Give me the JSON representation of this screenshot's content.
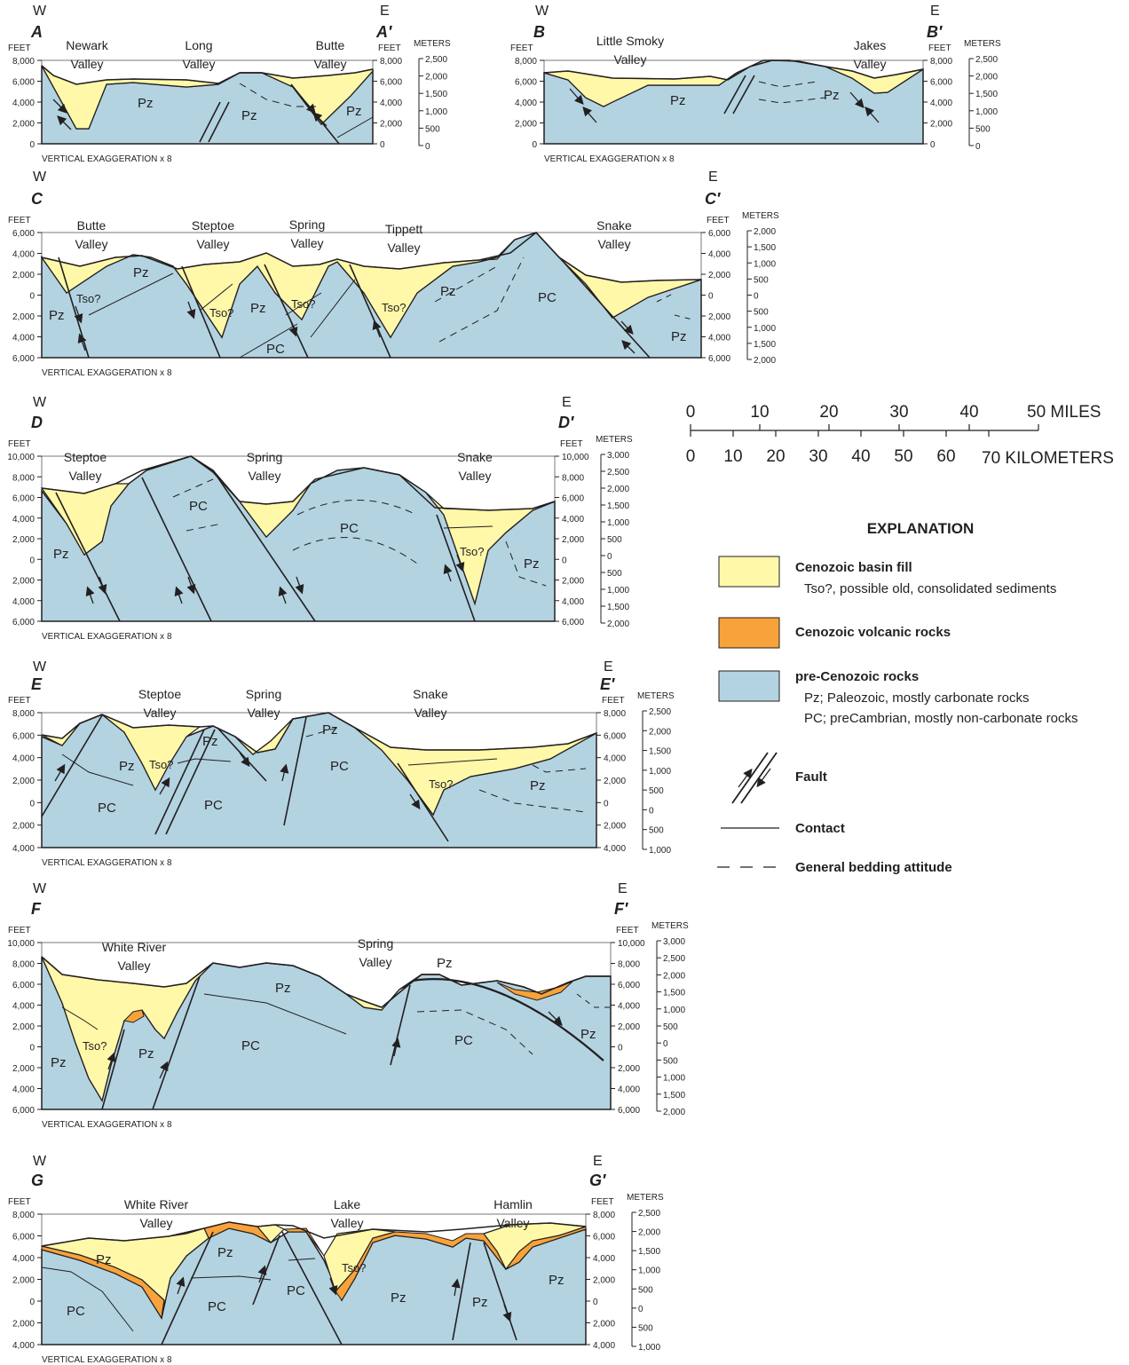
{
  "sections": [
    {
      "id": "A",
      "start": "A",
      "end": "A′",
      "west": "W",
      "east": "E",
      "feet_ticks": [
        "8,000",
        "6,000",
        "4,000",
        "2,000",
        "0"
      ],
      "meter_ticks": [
        "2,500",
        "2,000",
        "1,500",
        "1,000",
        "500",
        "0"
      ],
      "valleys": [
        "Newark\nValley",
        "Long\nValley",
        "Butte\nValley"
      ],
      "rocks": [
        "Pz",
        "Pz",
        "Pz"
      ],
      "tso": []
    },
    {
      "id": "B",
      "start": "B",
      "end": "B′",
      "west": "W",
      "east": "E",
      "feet_ticks": [
        "8,000",
        "6,000",
        "4,000",
        "2,000",
        "0"
      ],
      "meter_ticks": [
        "2,500",
        "2,000",
        "1,500",
        "1,000",
        "500",
        "0"
      ],
      "valleys": [
        "Little Smoky\nValley",
        "Jakes\nValley"
      ],
      "rocks": [
        "Pz",
        "Pz"
      ],
      "tso": []
    },
    {
      "id": "C",
      "start": "C",
      "end": "C′",
      "west": "W",
      "east": "E",
      "feet_ticks": [
        "6,000",
        "4,000",
        "2,000",
        "0",
        "2,000",
        "4,000",
        "6,000"
      ],
      "meter_ticks": [
        "2,000",
        "1,500",
        "1,000",
        "500",
        "0",
        "500",
        "1,000",
        "1,500",
        "2,000"
      ],
      "valleys": [
        "Butte\nValley",
        "Steptoe\nValley",
        "Spring\nValley",
        "Tippett\nValley",
        "Snake\nValley"
      ],
      "rocks": [
        "Pz",
        "Pz",
        "Pz",
        "PC",
        "PC",
        "Pz",
        "Pz"
      ],
      "tso": [
        "Tso?",
        "Tso?",
        "Tso?",
        "Tso?"
      ]
    },
    {
      "id": "D",
      "start": "D",
      "end": "D′",
      "west": "W",
      "east": "E",
      "feet_ticks": [
        "10,000",
        "8,000",
        "6,000",
        "4,000",
        "2,000",
        "0",
        "2,000",
        "4,000",
        "6,000"
      ],
      "meter_ticks": [
        "3,000",
        "2,500",
        "2,000",
        "1,500",
        "1,000",
        "500",
        "0",
        "500",
        "1,000",
        "1,500",
        "2,000"
      ],
      "valleys": [
        "Steptoe\nValley",
        "Spring\nValley",
        "Snake\nValley"
      ],
      "rocks": [
        "Pz",
        "PC",
        "PC",
        "Pz"
      ],
      "tso": [
        "Tso?"
      ]
    },
    {
      "id": "E",
      "start": "E",
      "end": "E′",
      "west": "W",
      "east": "E",
      "feet_ticks": [
        "8,000",
        "6,000",
        "4,000",
        "2,000",
        "0",
        "2,000",
        "4,000"
      ],
      "meter_ticks": [
        "2,500",
        "2,000",
        "1,500",
        "1,000",
        "500",
        "0",
        "500",
        "1,000"
      ],
      "valleys": [
        "Steptoe\nValley",
        "Spring\nValley",
        "Snake\nValley"
      ],
      "rocks": [
        "Pz",
        "PC",
        "Pz",
        "PC",
        "Pz",
        "PC",
        "Pz"
      ],
      "tso": [
        "Tso?",
        "Tso?"
      ]
    },
    {
      "id": "F",
      "start": "F",
      "end": "F′",
      "west": "W",
      "east": "E",
      "feet_ticks": [
        "10,000",
        "8,000",
        "6,000",
        "4,000",
        "2,000",
        "0",
        "2,000",
        "4,000",
        "6,000"
      ],
      "meter_ticks": [
        "3,000",
        "2,500",
        "2,000",
        "1,500",
        "1,000",
        "500",
        "0",
        "500",
        "1,000",
        "1,500",
        "2,000"
      ],
      "valleys": [
        "White River\nValley",
        "Spring\nValley"
      ],
      "rocks": [
        "Pz",
        "Pz",
        "PC",
        "Pz",
        "PC",
        "Pz"
      ],
      "tso": [
        "Tso?"
      ]
    },
    {
      "id": "G",
      "start": "G",
      "end": "G′",
      "west": "W",
      "east": "E",
      "feet_ticks": [
        "8,000",
        "6,000",
        "4,000",
        "2,000",
        "0",
        "2,000",
        "4,000"
      ],
      "meter_ticks": [
        "2,500",
        "2,000",
        "1,500",
        "1,000",
        "500",
        "0",
        "500",
        "1,000"
      ],
      "valleys": [
        "White River\nValley",
        "Lake\nValley",
        "Hamlin\nValley"
      ],
      "rocks": [
        "Pz",
        "PC",
        "Pz",
        "PC",
        "PC",
        "Pz",
        "Pz",
        "Pz"
      ],
      "tso": [
        "Tso?"
      ]
    }
  ],
  "labels": {
    "feet": "FEET",
    "meters": "METERS",
    "vertical_exaggeration": "VERTICAL EXAGGERATION x 8"
  },
  "scale_bar": {
    "miles_ticks": [
      "0",
      "10",
      "20",
      "30",
      "40"
    ],
    "miles_last": "50 MILES",
    "km_ticks": [
      "0",
      "10",
      "20",
      "30",
      "40",
      "50",
      "60"
    ],
    "km_last": "70 KILOMETERS"
  },
  "explanation": {
    "title": "EXPLANATION",
    "items": [
      {
        "label": "Cenozoic basin fill",
        "sub": [
          "Tso?, possible old, consolidated sediments"
        ],
        "color": "#fff8a8"
      },
      {
        "label": "Cenozoic volcanic rocks",
        "sub": [],
        "color": "#f7a23a"
      },
      {
        "label": "pre-Cenozoic rocks",
        "sub": [
          "Pz; Paleozoic, mostly carbonate rocks",
          "PC; preCambrian, mostly non-carbonate rocks"
        ],
        "color": "#b3d3e1"
      },
      {
        "label": "Fault",
        "sub": []
      },
      {
        "label": "Contact",
        "sub": []
      },
      {
        "label": "General bedding attitude",
        "sub": []
      }
    ]
  },
  "colors": {
    "basin_fill": "#fff8a8",
    "volcanic": "#f7a23a",
    "pre_cenozoic": "#b3d3e1",
    "line": "#231f20"
  }
}
